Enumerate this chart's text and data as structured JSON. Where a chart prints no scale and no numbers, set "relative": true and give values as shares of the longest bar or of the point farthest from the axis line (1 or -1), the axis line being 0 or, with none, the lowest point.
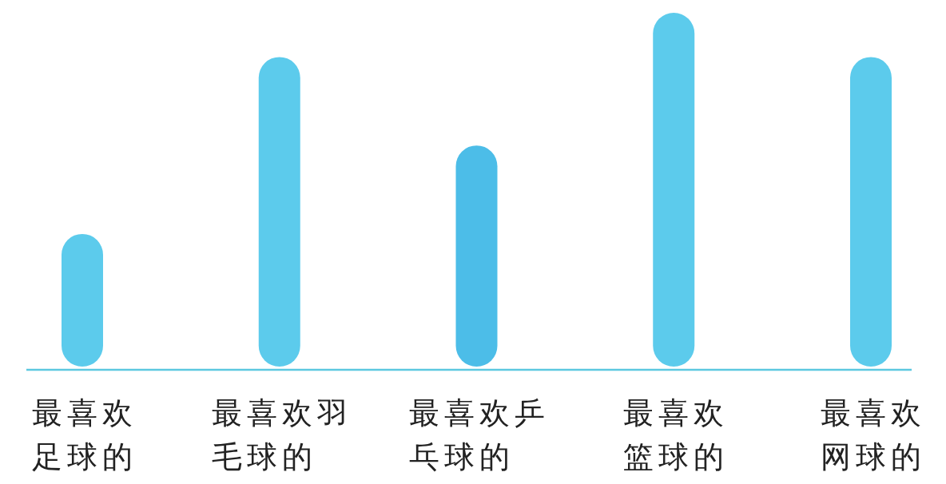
{
  "chart_data": {
    "type": "bar",
    "relative": true,
    "categories": [
      "最喜欢足球的",
      "最喜欢羽毛球的",
      "最喜欢乒乓球的",
      "最喜欢篮球的",
      "最喜欢网球的"
    ],
    "values": [
      0.375,
      0.875,
      0.625,
      1,
      0.875
    ],
    "colors": [
      "#5ccbec",
      "#5ccbec",
      "#4cbde8",
      "#5ccbec",
      "#5ccbec"
    ]
  }
}
